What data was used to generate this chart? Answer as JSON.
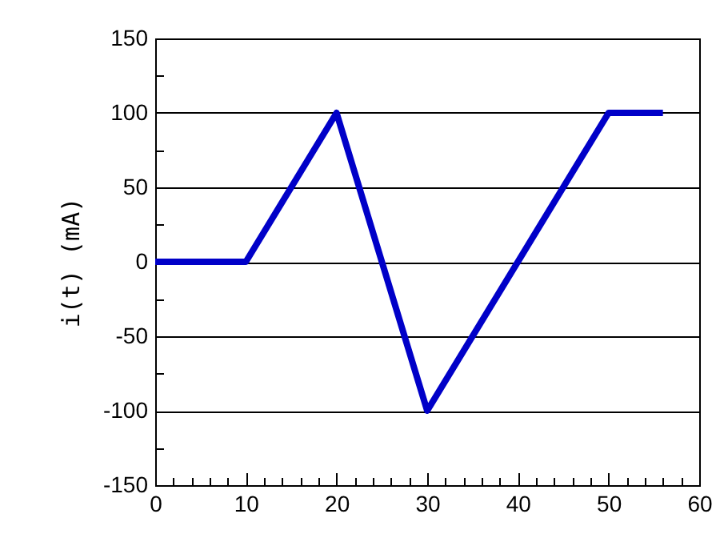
{
  "chart_data": {
    "type": "line",
    "ylabel": "i(t)  (mA)",
    "x": [
      0,
      10,
      20,
      30,
      50,
      56
    ],
    "series": [
      {
        "color": "#0000c8",
        "values": [
          0,
          0,
          100,
          -100,
          100,
          100
        ]
      }
    ],
    "xlim": [
      0,
      60
    ],
    "xticks": [
      0,
      {
        "value": 2,
        "label": null
      },
      {
        "value": 4,
        "label": null
      },
      {
        "value": 6,
        "label": null
      },
      {
        "value": 8,
        "label": null
      },
      10,
      {
        "value": 12,
        "label": null
      },
      {
        "value": 14,
        "label": null
      },
      {
        "value": 16,
        "label": null
      },
      {
        "value": 18,
        "label": null
      },
      20,
      {
        "value": 22,
        "label": null
      },
      {
        "value": 24,
        "label": null
      },
      {
        "value": 26,
        "label": null
      },
      {
        "value": 28,
        "label": null
      },
      30,
      {
        "value": 32,
        "label": null
      },
      {
        "value": 34,
        "label": null
      },
      {
        "value": 36,
        "label": null
      },
      {
        "value": 38,
        "label": null
      },
      40,
      {
        "value": 42,
        "label": null
      },
      {
        "value": 44,
        "label": null
      },
      {
        "value": 46,
        "label": null
      },
      {
        "value": 48,
        "label": null
      },
      50,
      {
        "value": 52,
        "label": null
      },
      {
        "value": 54,
        "label": null
      },
      {
        "value": 56,
        "label": null
      },
      {
        "value": 58,
        "label": null
      },
      60
    ],
    "ylim": [
      -150,
      150
    ],
    "yticks": [
      -150,
      {
        "value": -125,
        "label": null
      },
      -100,
      {
        "value": -75,
        "label": null
      },
      -50,
      {
        "value": -25,
        "label": null
      },
      0,
      {
        "value": 25,
        "label": null
      },
      50,
      {
        "value": 75,
        "label": null
      },
      100,
      {
        "value": 125,
        "label": null
      },
      150
    ],
    "grid": "y",
    "marker": "none",
    "line_style": "solid"
  }
}
